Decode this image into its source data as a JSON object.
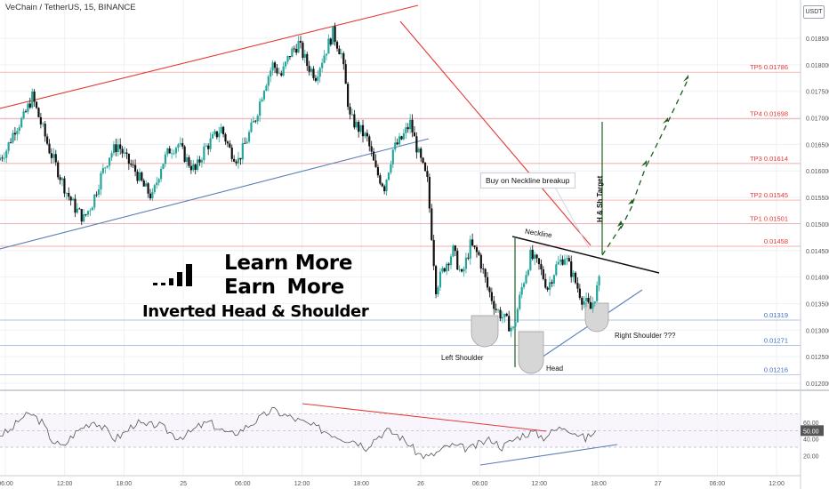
{
  "header": {
    "title": "VeChain / TetherUS, 15, BINANCE"
  },
  "price_axis": {
    "currency_badge": "USDT",
    "ticks": [
      "0.018500",
      "0.018000",
      "0.017500",
      "0.017000",
      "0.016500",
      "0.016000",
      "0.015500",
      "0.015000",
      "0.014500",
      "0.014000",
      "0.013500",
      "0.013000",
      "0.012500",
      "0.012000"
    ]
  },
  "rsi_axis": {
    "ticks": [
      "60.00",
      "40.00",
      "20.00"
    ],
    "value_badge": "50.00"
  },
  "time_axis": {
    "ticks": [
      "06:00",
      "12:00",
      "18:00",
      "25",
      "06:00",
      "12:00",
      "18:00",
      "26",
      "06:00",
      "12:00",
      "18:00",
      "27",
      "06:00",
      "12:00"
    ]
  },
  "levels": [
    {
      "label": "TP5 0.01786",
      "color": "#e53935"
    },
    {
      "label": "TP4 0.01698",
      "color": "#e53935"
    },
    {
      "label": "TP3 0.01614",
      "color": "#e53935"
    },
    {
      "label": "TP2 0.01545",
      "color": "#e53935"
    },
    {
      "label": "TP1 0.01501",
      "color": "#e53935"
    },
    {
      "label": "0.01458",
      "color": "#e53935"
    },
    {
      "label": "0.01319",
      "color": "#3f6fbf"
    },
    {
      "label": "0.01271",
      "color": "#3f6fbf"
    },
    {
      "label": "0.01216",
      "color": "#3f6fbf"
    }
  ],
  "annotations": {
    "neckline": "Neckline",
    "buy_note": "Buy on Neckline breakup",
    "hs_target": "H & Sh Target",
    "left_shoulder": "Left Shoulder",
    "head": "Head",
    "right_shoulder": "Right Shoulder ???"
  },
  "promo": {
    "line1": "Learn More",
    "line2": "Earn  More",
    "line3": "Inverted Head & Shoulder"
  },
  "colors": {
    "up": "#26a69a",
    "down": "#111111",
    "resistance": "#e53935",
    "support": "#5b7fb5",
    "target": "#1b5e20",
    "rsi": "#555555"
  },
  "chart_data": {
    "type": "candlestick",
    "symbol": "VeChain / TetherUS",
    "interval": "15",
    "exchange": "BINANCE",
    "close_path": [
      0.0162,
      0.0164,
      0.0168,
      0.017,
      0.0174,
      0.0169,
      0.0164,
      0.016,
      0.0156,
      0.0153,
      0.0151,
      0.0154,
      0.0159,
      0.0163,
      0.0165,
      0.0162,
      0.016,
      0.0157,
      0.0155,
      0.0161,
      0.0164,
      0.0165,
      0.0162,
      0.016,
      0.0164,
      0.0166,
      0.0168,
      0.0164,
      0.0162,
      0.0166,
      0.017,
      0.0176,
      0.018,
      0.0178,
      0.0182,
      0.0184,
      0.018,
      0.0178,
      0.0182,
      0.0186,
      0.0182,
      0.017,
      0.0168,
      0.0166,
      0.016,
      0.0157,
      0.0164,
      0.0166,
      0.0169,
      0.0163,
      0.0158,
      0.0138,
      0.0142,
      0.0145,
      0.014,
      0.0146,
      0.0144,
      0.0138,
      0.0134,
      0.0132,
      0.013,
      0.0138,
      0.0144,
      0.0142,
      0.0138,
      0.0142,
      0.0144,
      0.014,
      0.0136,
      0.0134,
      0.0139
    ],
    "levels": [
      0.01786,
      0.01698,
      0.01614,
      0.01545,
      0.01501,
      0.01458,
      0.01319,
      0.01271,
      0.01216
    ],
    "indicator": {
      "name": "RSI",
      "guides": [
        70,
        50,
        30
      ],
      "values": [
        45,
        50,
        65,
        70,
        60,
        38,
        30,
        45,
        55,
        62,
        52,
        40,
        48,
        60,
        55,
        58,
        50,
        42,
        46,
        55,
        60,
        52,
        45,
        50,
        58,
        66,
        75,
        70,
        65,
        60,
        55,
        50,
        45,
        40,
        38,
        30,
        42,
        50,
        45,
        35,
        22,
        18,
        25,
        32,
        30,
        28,
        35,
        40,
        30,
        38,
        45,
        48,
        42,
        50,
        55,
        48,
        40,
        50
      ]
    }
  }
}
